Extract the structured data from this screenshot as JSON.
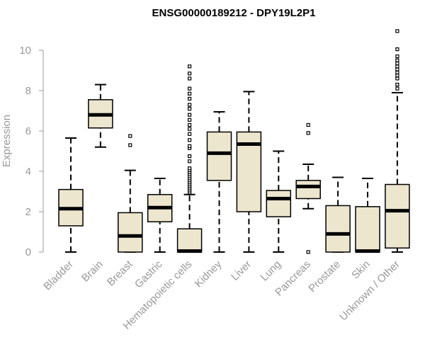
{
  "chart_data": {
    "type": "box",
    "title": "ENSG00000189212 - DPY19L2P1",
    "ylabel": "Expression",
    "xlabel": "",
    "ylim": [
      0,
      10.5
    ],
    "yticks": [
      0,
      2,
      4,
      6,
      8,
      10
    ],
    "box_fill": "#ede6cf",
    "outline_color": "#000000",
    "axis_color": "#999999",
    "categories": [
      "Bladder",
      "Brain",
      "Breast",
      "Gastric",
      "Hematopoietic cells",
      "Kidney",
      "Liver",
      "Lung",
      "Pancreas",
      "Prostate",
      "Skin",
      "Unknown / Other"
    ],
    "boxes": [
      {
        "min": 0.0,
        "q1": 1.3,
        "median": 2.15,
        "q3": 3.1,
        "max": 5.65,
        "outliers": []
      },
      {
        "min": 5.2,
        "q1": 6.15,
        "median": 6.8,
        "q3": 7.55,
        "max": 8.3,
        "outliers": []
      },
      {
        "min": 0.0,
        "q1": 0.0,
        "median": 0.8,
        "q3": 1.95,
        "max": 4.05,
        "outliers": [
          5.3,
          5.75
        ]
      },
      {
        "min": 0.0,
        "q1": 1.5,
        "median": 2.2,
        "q3": 2.85,
        "max": 3.65,
        "outliers": []
      },
      {
        "min": 0.0,
        "q1": 0.0,
        "median": 0.05,
        "q3": 1.15,
        "max": 2.85,
        "outliers": [
          2.95,
          3.05,
          3.15,
          3.25,
          3.35,
          3.45,
          3.55,
          3.65,
          3.75,
          3.85,
          3.95,
          4.05,
          4.15,
          4.5,
          4.75,
          5.15,
          5.25,
          5.55,
          5.85,
          6.1,
          6.3,
          6.55,
          6.8,
          7.1,
          7.3,
          7.6,
          7.85,
          8.1,
          8.6,
          8.85,
          9.2
        ]
      },
      {
        "min": 0.0,
        "q1": 3.55,
        "median": 4.9,
        "q3": 5.95,
        "max": 6.95,
        "outliers": []
      },
      {
        "min": 0.0,
        "q1": 2.0,
        "median": 5.35,
        "q3": 5.95,
        "max": 7.95,
        "outliers": []
      },
      {
        "min": 0.0,
        "q1": 1.75,
        "median": 2.65,
        "q3": 3.05,
        "max": 5.0,
        "outliers": []
      },
      {
        "min": 2.15,
        "q1": 2.65,
        "median": 3.25,
        "q3": 3.55,
        "max": 4.35,
        "outliers": [
          0.0,
          5.9,
          6.3
        ]
      },
      {
        "min": 0.0,
        "q1": 0.0,
        "median": 0.9,
        "q3": 2.3,
        "max": 3.7,
        "outliers": []
      },
      {
        "min": 0.0,
        "q1": 0.0,
        "median": 0.05,
        "q3": 2.25,
        "max": 3.65,
        "outliers": []
      },
      {
        "min": 0.0,
        "q1": 0.2,
        "median": 2.05,
        "q3": 3.35,
        "max": 7.9,
        "outliers": [
          8.1,
          8.3,
          8.6,
          8.75,
          8.9,
          9.05,
          9.2,
          9.35,
          9.5,
          9.7,
          10.05,
          10.95
        ]
      }
    ]
  }
}
